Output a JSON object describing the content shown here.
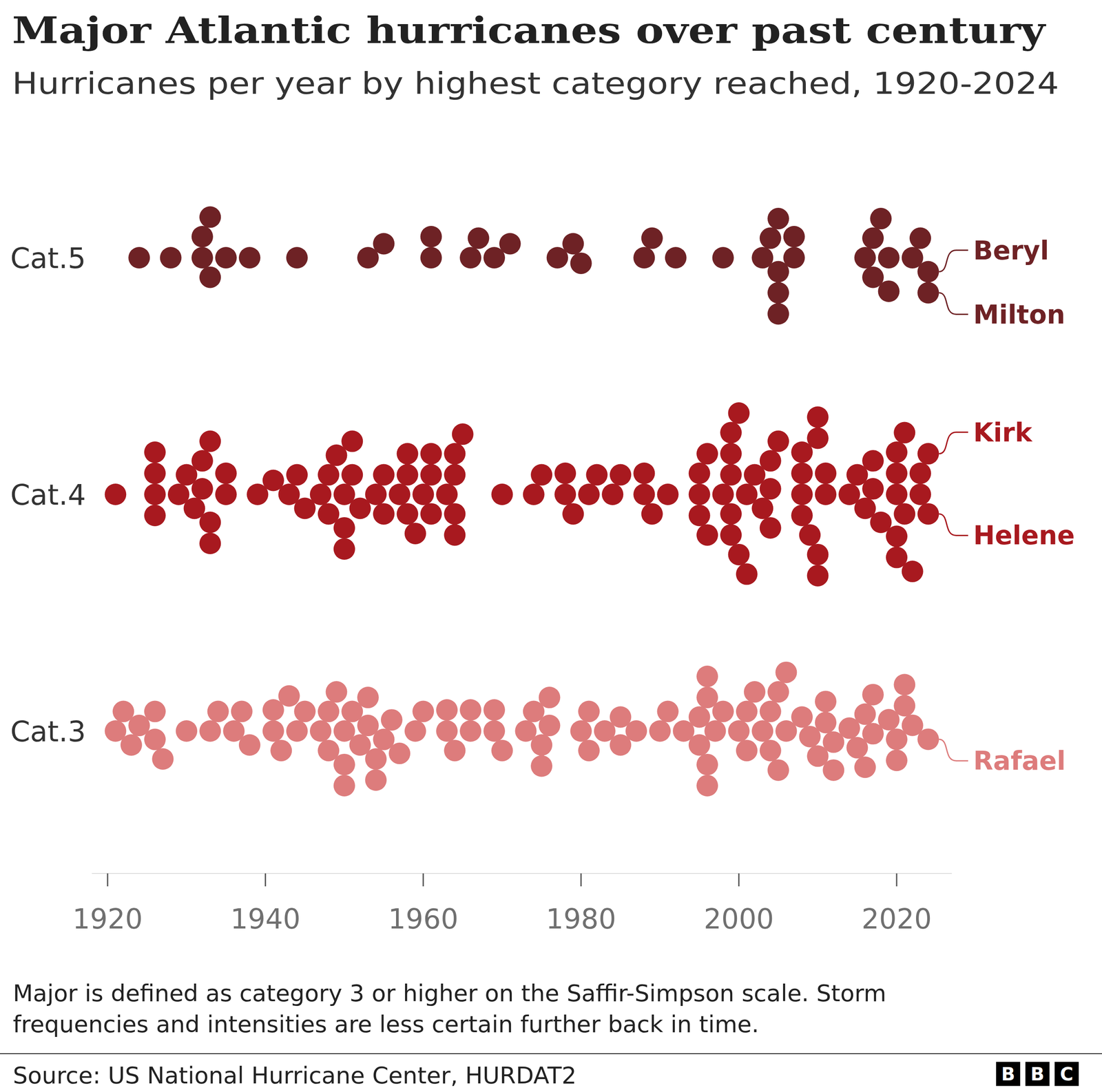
{
  "chart_data": {
    "type": "beeswarm",
    "title": "Major Atlantic hurricanes over past century",
    "subtitle": "Hurricanes per year by highest category reached, 1920-2024",
    "xlim": [
      1918,
      2027
    ],
    "xticks": [
      1920,
      1940,
      1960,
      1980,
      2000,
      2020
    ],
    "series": [
      {
        "name": "Cat.5",
        "color": "#6e2225",
        "values": [
          1924,
          1928,
          1932,
          1932,
          1933,
          1933,
          1935,
          1938,
          1944,
          1953,
          1955,
          1961,
          1961,
          1966,
          1967,
          1969,
          1971,
          1977,
          1979,
          1980,
          1988,
          1989,
          1992,
          1998,
          2003,
          2004,
          2005,
          2005,
          2005,
          2005,
          2007,
          2007,
          2016,
          2017,
          2017,
          2018,
          2019,
          2019,
          2022,
          2023,
          2024,
          2024
        ],
        "annotations": [
          {
            "text": "Beryl",
            "x": 2024
          },
          {
            "text": "Milton",
            "x": 2024
          }
        ]
      },
      {
        "name": "Cat.4",
        "color": "#a8191f",
        "values": [
          1921,
          1926,
          1926,
          1926,
          1926,
          1929,
          1930,
          1931,
          1932,
          1932,
          1933,
          1933,
          1933,
          1935,
          1935,
          1939,
          1941,
          1943,
          1944,
          1945,
          1947,
          1948,
          1948,
          1949,
          1950,
          1950,
          1950,
          1951,
          1951,
          1952,
          1954,
          1955,
          1955,
          1957,
          1958,
          1958,
          1958,
          1959,
          1960,
          1961,
          1961,
          1961,
          1963,
          1964,
          1964,
          1964,
          1964,
          1965,
          1970,
          1974,
          1975,
          1978,
          1978,
          1979,
          1981,
          1982,
          1984,
          1985,
          1988,
          1988,
          1989,
          1991,
          1995,
          1995,
          1995,
          1996,
          1996,
          1998,
          1999,
          1999,
          1999,
          1999,
          1999,
          2000,
          2000,
          2001,
          2001,
          2002,
          2003,
          2004,
          2004,
          2004,
          2005,
          2008,
          2008,
          2008,
          2008,
          2009,
          2010,
          2010,
          2010,
          2010,
          2011,
          2011,
          2014,
          2015,
          2016,
          2017,
          2017,
          2018,
          2020,
          2020,
          2020,
          2020,
          2020,
          2021,
          2021,
          2022,
          2023,
          2023,
          2024,
          2024
        ],
        "annotations": [
          {
            "text": "Kirk",
            "x": 2024
          },
          {
            "text": "Helene",
            "x": 2024
          }
        ]
      },
      {
        "name": "Cat.3",
        "color": "#dd7c7c",
        "values": [
          1921,
          1922,
          1923,
          1924,
          1926,
          1926,
          1927,
          1930,
          1933,
          1934,
          1936,
          1937,
          1938,
          1941,
          1941,
          1942,
          1943,
          1944,
          1945,
          1947,
          1948,
          1948,
          1949,
          1950,
          1950,
          1950,
          1951,
          1952,
          1953,
          1953,
          1954,
          1954,
          1955,
          1956,
          1957,
          1959,
          1960,
          1963,
          1963,
          1964,
          1966,
          1966,
          1969,
          1969,
          1970,
          1973,
          1974,
          1975,
          1975,
          1976,
          1976,
          1980,
          1981,
          1981,
          1983,
          1985,
          1985,
          1987,
          1990,
          1991,
          1993,
          1995,
          1995,
          1996,
          1996,
          1996,
          1996,
          1997,
          1998,
          2000,
          2001,
          2001,
          2002,
          2003,
          2004,
          2004,
          2005,
          2005,
          2006,
          2006,
          2008,
          2009,
          2010,
          2011,
          2011,
          2012,
          2012,
          2014,
          2015,
          2016,
          2016,
          2017,
          2017,
          2019,
          2020,
          2020,
          2021,
          2021,
          2022,
          2024
        ],
        "annotations": [
          {
            "text": "Rafael",
            "x": 2024
          }
        ]
      }
    ],
    "footnote": [
      "Major is defined as category 3 or higher on the Saffir-Simpson scale. Storm",
      "frequencies and intensities are less certain further back in time."
    ],
    "source": "Source: US National Hurricane Center, HURDAT2",
    "logo": "BBC"
  }
}
